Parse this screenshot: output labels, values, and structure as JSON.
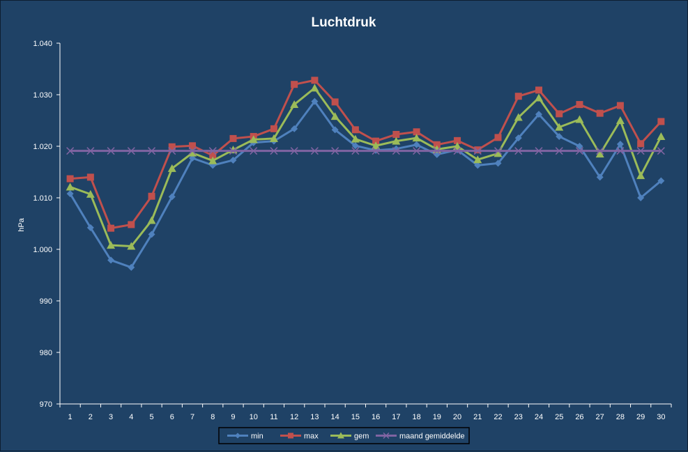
{
  "chart_data": {
    "type": "line",
    "title": "Luchtdruk",
    "ylabel": "hPa",
    "xlabel": "",
    "ylim": [
      970,
      1040
    ],
    "ytick_step": 10,
    "ytick_labels": [
      "970",
      "980",
      "990",
      "1.000",
      "1.010",
      "1.020",
      "1.030",
      "1.040"
    ],
    "grid": false,
    "legend_position": "bottom",
    "categories": [
      "1",
      "2",
      "3",
      "4",
      "5",
      "6",
      "7",
      "8",
      "9",
      "10",
      "11",
      "12",
      "13",
      "14",
      "15",
      "16",
      "17",
      "18",
      "19",
      "20",
      "21",
      "22",
      "23",
      "24",
      "25",
      "26",
      "27",
      "28",
      "29",
      "30"
    ],
    "series": [
      {
        "name": "min",
        "color": "#4f81bd",
        "marker": "diamond",
        "values": [
          1010.8,
          1004.2,
          997.9,
          996.5,
          1002.9,
          1010.2,
          1017.7,
          1016.3,
          1017.3,
          1020.7,
          1021.0,
          1023.4,
          1028.7,
          1023.2,
          1020.1,
          1019.2,
          1019.5,
          1020.3,
          1018.4,
          1019.3,
          1016.3,
          1016.7,
          1021.6,
          1026.2,
          1021.9,
          1020.0,
          1014.0,
          1020.4,
          1010.0,
          1013.3
        ]
      },
      {
        "name": "max",
        "color": "#c0504d",
        "marker": "square",
        "values": [
          1013.7,
          1014.0,
          1004.1,
          1004.8,
          1010.3,
          1019.9,
          1020.1,
          1018.2,
          1021.5,
          1021.9,
          1023.4,
          1032.0,
          1032.8,
          1028.6,
          1023.2,
          1021.0,
          1022.3,
          1022.8,
          1020.3,
          1021.1,
          1019.3,
          1021.7,
          1029.7,
          1030.9,
          1026.3,
          1028.1,
          1026.4,
          1027.9,
          1020.5,
          1024.8
        ]
      },
      {
        "name": "gem",
        "color": "#9bbb59",
        "marker": "triangle",
        "values": [
          1012.1,
          1010.7,
          1000.8,
          1000.6,
          1005.6,
          1015.7,
          1018.7,
          1017.2,
          1019.3,
          1021.3,
          1021.5,
          1028.1,
          1031.3,
          1025.8,
          1021.4,
          1020.1,
          1021.0,
          1021.6,
          1019.4,
          1020.0,
          1017.4,
          1018.6,
          1025.6,
          1029.4,
          1023.7,
          1025.2,
          1018.5,
          1025.0,
          1014.3,
          1021.9
        ]
      },
      {
        "name": "maand gemiddelde",
        "color": "#8064a2",
        "marker": "x",
        "values": [
          1019.1,
          1019.1,
          1019.1,
          1019.1,
          1019.1,
          1019.1,
          1019.1,
          1019.1,
          1019.1,
          1019.1,
          1019.1,
          1019.1,
          1019.1,
          1019.1,
          1019.1,
          1019.1,
          1019.1,
          1019.1,
          1019.1,
          1019.1,
          1019.1,
          1019.1,
          1019.1,
          1019.1,
          1019.1,
          1019.1,
          1019.1,
          1019.1,
          1019.1,
          1019.1
        ]
      }
    ]
  }
}
